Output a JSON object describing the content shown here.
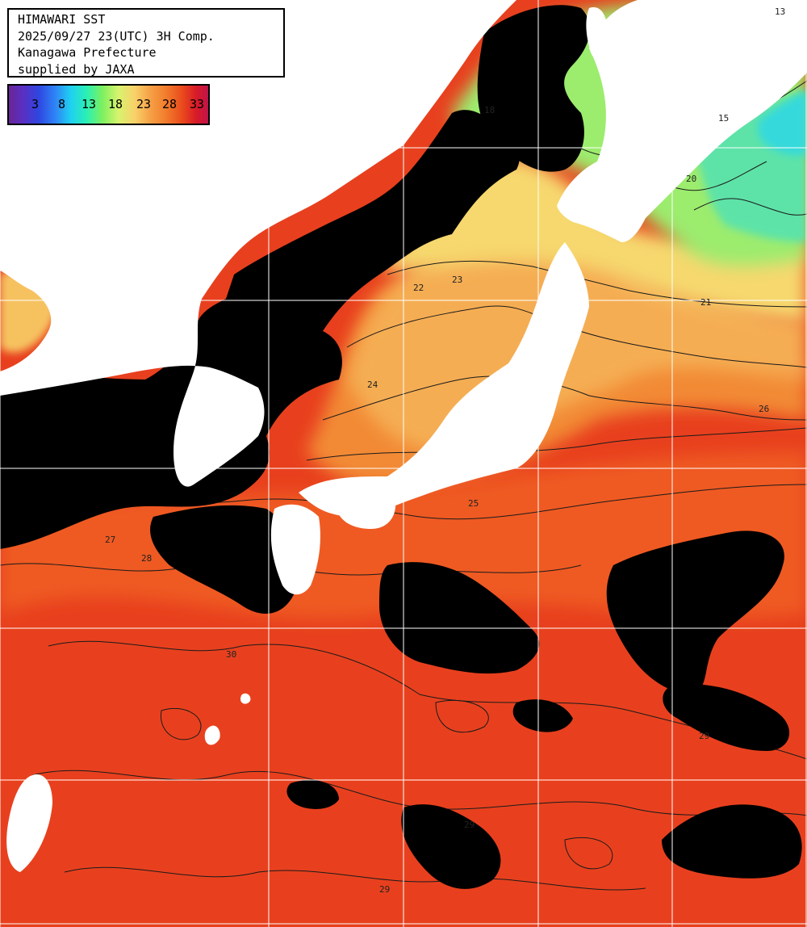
{
  "header": {
    "title": "HIMAWARI SST",
    "timestamp": "2025/09/27 23(UTC) 3H Comp.",
    "region": "Kanagawa Prefecture",
    "credit": "supplied by JAXA"
  },
  "colorbar": {
    "ticks": [
      "3",
      "8",
      "13",
      "18",
      "23",
      "28",
      "33"
    ],
    "unit": "",
    "range": [
      0,
      34
    ]
  },
  "contour_labels": [
    "13",
    "15",
    "18",
    "20",
    "21",
    "22",
    "23",
    "24",
    "25",
    "26",
    "27",
    "28",
    "29",
    "30"
  ],
  "colors": {
    "land": "#ffffff",
    "cloud": "#000000",
    "warm_sea": "#e8401e",
    "orange_sea": "#f28a34",
    "cool_sea": "#f6d86e",
    "green_sea": "#9cec6e",
    "cold_sea": "#36dcd0",
    "grid": "#ffffff",
    "contour": "#1a1a1a"
  }
}
